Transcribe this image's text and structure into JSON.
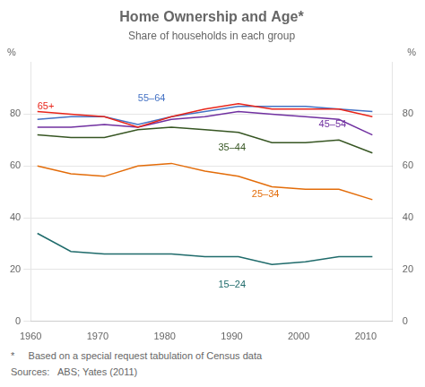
{
  "chart_data": {
    "type": "line",
    "title": "Home Ownership and Age*",
    "subtitle": "Share of households in each group",
    "ylabel": "%",
    "y2label": "%",
    "footnotes": [
      "*     Based on a special request tabulation of Census data",
      "Sources:   ABS; Yates (2011)"
    ],
    "x": [
      1961,
      1966,
      1971,
      1976,
      1981,
      1986,
      1991,
      1996,
      2001,
      2006,
      2011
    ],
    "series": [
      {
        "color": "#e8251a",
        "values": [
          81,
          80,
          79,
          75,
          79,
          82,
          84,
          82,
          82,
          82,
          79
        ]
      },
      {
        "color": "#4472c4",
        "values": [
          78,
          79,
          79,
          76,
          79,
          81,
          83,
          83,
          83,
          82,
          81
        ]
      },
      {
        "color": "#7030a0",
        "values": [
          75,
          75,
          76,
          75,
          78,
          79,
          81,
          80,
          79,
          78,
          72
        ]
      },
      {
        "color": "#375623",
        "values": [
          72,
          71,
          71,
          74,
          75,
          74,
          73,
          69,
          69,
          70,
          65
        ]
      },
      {
        "color": "#e36c09",
        "values": [
          60,
          57,
          56,
          60,
          61,
          58,
          56,
          52,
          51,
          51,
          47
        ]
      },
      {
        "color": "#1f6b6b",
        "values": [
          34,
          27,
          26,
          26,
          26,
          25,
          25,
          22,
          23,
          25,
          25
        ]
      }
    ],
    "annotations": [
      {
        "text": "65+",
        "x": 1961,
        "y": 83,
        "color": "#e8251a"
      },
      {
        "text": "55–64",
        "x": 1976,
        "y": 86,
        "color": "#4472c4"
      },
      {
        "text": "45–54",
        "x": 2003,
        "y": 76,
        "color": "#7030a0"
      },
      {
        "text": "35–44",
        "x": 1988,
        "y": 67,
        "color": "#375623"
      },
      {
        "text": "25–34",
        "x": 1993,
        "y": 49,
        "color": "#e36c09"
      },
      {
        "text": "15–24",
        "x": 1988,
        "y": 14,
        "color": "#1f6b6b"
      }
    ],
    "xlim": [
      1960,
      2014
    ],
    "xticks": [
      1960,
      1970,
      1980,
      1990,
      2000,
      2010
    ],
    "ylim": [
      0,
      100
    ],
    "yticks": [
      0,
      20,
      40,
      60,
      80
    ],
    "y2lim": [
      0,
      100
    ],
    "y2ticks": [
      0,
      20,
      40,
      60,
      80
    ],
    "grid": true
  }
}
